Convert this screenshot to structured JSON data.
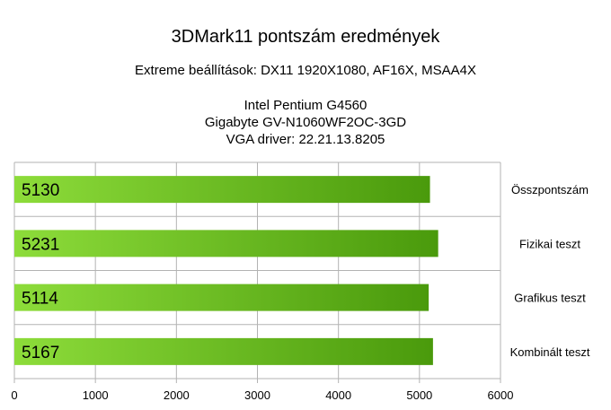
{
  "chart_data": {
    "type": "bar",
    "orientation": "horizontal",
    "title": "3DMark11 pontszám eredmények",
    "subtitle": "Extreme beállítások: DX11 1920X1080, AF16X, MSAA4X",
    "info_lines": [
      "Intel Pentium G4560",
      "Gigabyte GV-N1060WF2OC-3GD",
      "VGA driver: 22.21.13.8205"
    ],
    "categories": [
      "Összpontszám",
      "Fizikai teszt",
      "Grafikus teszt",
      "Kombinált teszt"
    ],
    "values": [
      5130,
      5231,
      5114,
      5167
    ],
    "data_labels": [
      "5130",
      "5231",
      "5114",
      "5167"
    ],
    "xlim": [
      0,
      6000
    ],
    "xticks": [
      0,
      1000,
      2000,
      3000,
      4000,
      5000,
      6000
    ],
    "xtick_labels": [
      "0",
      "1000",
      "2000",
      "3000",
      "4000",
      "5000",
      "6000"
    ],
    "xlabel": "",
    "ylabel": "",
    "grid": true,
    "legend": false,
    "category_label_position": "right",
    "colors": {
      "bar_light": "#8ddc3a",
      "bar_dark": "#4a9a0c",
      "grid": "#b3b3b3"
    }
  }
}
